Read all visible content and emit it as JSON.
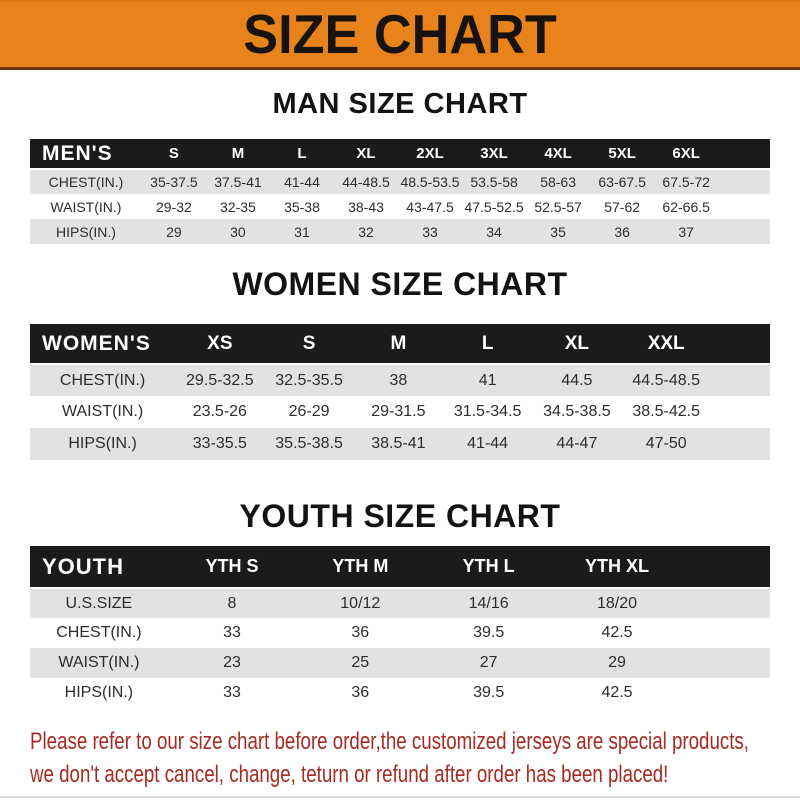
{
  "banner": {
    "title": "SIZE CHART"
  },
  "colors": {
    "banner_orange": "#e8831c",
    "header_bar_black": "#1d1a1b",
    "alt_row_gray": "#e3e1e2",
    "disclaimer_red": "#a72b24"
  },
  "sections": [
    {
      "title": "MAN SIZE CHART",
      "table": {
        "label": "MEN'S",
        "columns": [
          "S",
          "M",
          "L",
          "XL",
          "2XL",
          "3XL",
          "4XL",
          "5XL",
          "6XL"
        ],
        "rows": [
          {
            "label": "CHEST(IN.)",
            "values": [
              "35-37.5",
              "37.5-41",
              "41-44",
              "44-48.5",
              "48.5-53.5",
              "53.5-58",
              "58-63",
              "63-67.5",
              "67.5-72"
            ]
          },
          {
            "label": "WAIST(IN.)",
            "values": [
              "29-32",
              "32-35",
              "35-38",
              "38-43",
              "43-47.5",
              "47.5-52.5",
              "52.5-57",
              "57-62",
              "62-66.5"
            ]
          },
          {
            "label": "HIPS(IN.)",
            "values": [
              "29",
              "30",
              "31",
              "32",
              "33",
              "34",
              "35",
              "36",
              "37"
            ]
          }
        ]
      }
    },
    {
      "title": "WOMEN SIZE CHART",
      "table": {
        "label": "WOMEN'S",
        "columns": [
          "XS",
          "S",
          "M",
          "L",
          "XL",
          "XXL"
        ],
        "rows": [
          {
            "label": "CHEST(IN.)",
            "values": [
              "29.5-32.5",
              "32.5-35.5",
              "38",
              "41",
              "44.5",
              "44.5-48.5"
            ]
          },
          {
            "label": "WAIST(IN.)",
            "values": [
              "23.5-26",
              "26-29",
              "29-31.5",
              "31.5-34.5",
              "34.5-38.5",
              "38.5-42.5"
            ]
          },
          {
            "label": "HIPS(IN.)",
            "values": [
              "33-35.5",
              "35.5-38.5",
              "38.5-41",
              "41-44",
              "44-47",
              "47-50"
            ]
          }
        ]
      }
    },
    {
      "title": "YOUTH SIZE CHART",
      "table": {
        "label": "YOUTH",
        "columns": [
          "YTH S",
          "YTH M",
          "YTH L",
          "YTH XL"
        ],
        "rows": [
          {
            "label": "U.S.SIZE",
            "values": [
              "8",
              "10/12",
              "14/16",
              "18/20"
            ]
          },
          {
            "label": "CHEST(IN.)",
            "values": [
              "33",
              "36",
              "39.5",
              "42.5"
            ]
          },
          {
            "label": "WAIST(IN.)",
            "values": [
              "23",
              "25",
              "27",
              "29"
            ]
          },
          {
            "label": "HIPS(IN.)",
            "values": [
              "33",
              "36",
              "39.5",
              "42.5"
            ]
          }
        ]
      }
    }
  ],
  "disclaimer": {
    "line1": "Please refer to our size chart before order,the customized jerseys are special products,",
    "line2": "we don't accept cancel, change, teturn or refund after order has been placed!"
  }
}
